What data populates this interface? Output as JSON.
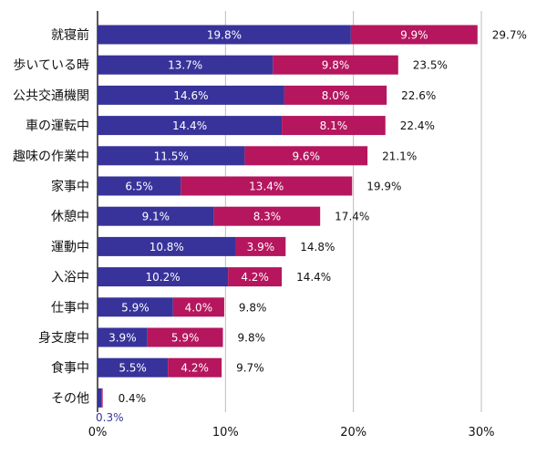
{
  "chart_data": {
    "type": "bar",
    "orientation": "horizontal",
    "stacked": true,
    "title": "",
    "xlabel": "",
    "ylabel": "",
    "xlim": [
      0,
      30
    ],
    "x_ticks": [
      0,
      10,
      20,
      30
    ],
    "x_tick_labels": [
      "0%",
      "10%",
      "20%",
      "30%"
    ],
    "grid": "vertical",
    "legend": "none",
    "categories": [
      "就寝前",
      "歩いている時",
      "公共交通機関",
      "車の運転中",
      "趣味の作業中",
      "家事中",
      "休憩中",
      "運動中",
      "入浴中",
      "仕事中",
      "身支度中",
      "食事中",
      "その他"
    ],
    "series": [
      {
        "color": "#38339a",
        "values": [
          19.8,
          13.7,
          14.6,
          14.4,
          11.5,
          6.5,
          9.1,
          10.8,
          10.2,
          5.9,
          3.9,
          5.5,
          0.3
        ],
        "labels": [
          "19.8%",
          "13.7%",
          "14.6%",
          "14.4%",
          "11.5%",
          "6.5%",
          "9.1%",
          "10.8%",
          "10.2%",
          "5.9%",
          "3.9%",
          "5.5%",
          "0.3%"
        ]
      },
      {
        "color": "#b5165e",
        "values": [
          9.9,
          9.8,
          8.0,
          8.1,
          9.6,
          13.4,
          8.3,
          3.9,
          4.2,
          4.0,
          5.9,
          4.2,
          0.1
        ],
        "labels": [
          "9.9%",
          "9.8%",
          "8.0%",
          "8.1%",
          "9.6%",
          "13.4%",
          "8.3%",
          "3.9%",
          "4.2%",
          "4.0%",
          "5.9%",
          "4.2%",
          ""
        ]
      }
    ],
    "totals": [
      29.7,
      23.5,
      22.6,
      22.4,
      21.1,
      19.9,
      17.4,
      14.8,
      14.4,
      9.8,
      9.8,
      9.7,
      0.4
    ],
    "total_labels": [
      "29.7%",
      "23.5%",
      "22.6%",
      "22.4%",
      "21.1%",
      "19.9%",
      "17.4%",
      "14.8%",
      "14.4%",
      "9.8%",
      "9.8%",
      "9.7%",
      "0.4%"
    ]
  }
}
